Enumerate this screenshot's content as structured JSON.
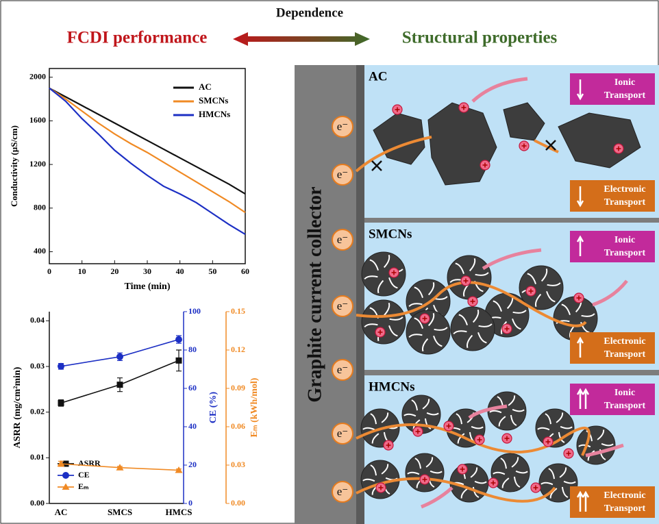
{
  "header": {
    "center": "Dependence",
    "left": "FCDI performance",
    "right": "Structural properties"
  },
  "chart_data": [
    {
      "type": "line",
      "xlabel": "Time (min)",
      "ylabel": "Conductivity (μS/cm)",
      "x": [
        0,
        5,
        10,
        15,
        20,
        25,
        30,
        35,
        40,
        45,
        50,
        55,
        60
      ],
      "series": [
        {
          "name": "AC",
          "color": "#111111",
          "values": [
            1900,
            1820,
            1740,
            1660,
            1580,
            1500,
            1420,
            1340,
            1260,
            1180,
            1100,
            1020,
            930
          ]
        },
        {
          "name": "SMCNs",
          "color": "#f08a24",
          "values": [
            1900,
            1800,
            1690,
            1580,
            1480,
            1390,
            1310,
            1220,
            1130,
            1040,
            950,
            860,
            760
          ]
        },
        {
          "name": "HMCNs",
          "color": "#1c2fc4",
          "values": [
            1900,
            1780,
            1620,
            1480,
            1330,
            1210,
            1100,
            1000,
            930,
            850,
            750,
            650,
            560
          ]
        }
      ],
      "xlim": [
        0,
        60
      ],
      "xticks": [
        0,
        10,
        20,
        30,
        40,
        50,
        60
      ],
      "ylim": [
        290,
        2080
      ],
      "yticks": [
        400,
        800,
        1200,
        1600,
        2000
      ],
      "legend": "upper right"
    },
    {
      "type": "line",
      "categories": [
        "AC",
        "SMCS",
        "HMCS"
      ],
      "ylabel": "ASRR (mg/cm²min)",
      "y2label": "CE (%)",
      "y3label": "Eₘ (kWh/mol)",
      "series": [
        {
          "name": "ASRR",
          "color": "#111111",
          "marker": "square",
          "values": [
            0.022,
            0.026,
            0.0313
          ],
          "errors": [
            0.0007,
            0.0015,
            0.0023
          ]
        },
        {
          "name": "CE",
          "color": "#1c2fc4",
          "marker": "circle",
          "axis": "y2",
          "values": [
            71.5,
            76.5,
            85.5
          ],
          "errors": [
            1.5,
            2,
            2
          ]
        },
        {
          "name": "Eₘ",
          "color": "#f08a24",
          "marker": "triangle",
          "axis": "y3",
          "values": [
            0.031,
            0.028,
            0.026
          ],
          "errors": [
            0.002,
            0.001,
            0.001
          ]
        }
      ],
      "ylim": [
        0,
        0.042
      ],
      "yticks": [
        {
          "value": 0,
          "label": "0.00"
        },
        {
          "value": 0.01,
          "label": "0.01"
        },
        {
          "value": 0.02,
          "label": "0.02"
        },
        {
          "value": 0.03,
          "label": "0.03"
        },
        {
          "value": 0.04,
          "label": "0.04"
        }
      ],
      "y2lim": [
        0,
        100
      ],
      "y2ticks": [
        0,
        20,
        40,
        60,
        80,
        100
      ],
      "y3lim": [
        0,
        0.15
      ],
      "y3ticks": [
        {
          "value": 0,
          "label": "0.00"
        },
        {
          "value": 0.03,
          "label": "0.03"
        },
        {
          "value": 0.06,
          "label": "0.06"
        },
        {
          "value": 0.09,
          "label": "0.09"
        },
        {
          "value": 0.12,
          "label": "0.12"
        },
        {
          "value": 0.15,
          "label": "0.15"
        }
      ],
      "legend": "lower left"
    }
  ],
  "diagram": {
    "collector": "Graphite current collector",
    "electrons": [
      "e⁻",
      "e⁻",
      "e⁻",
      "e⁻",
      "e⁻",
      "e⁻",
      "e⁻"
    ],
    "panels": [
      {
        "label": "AC",
        "ionic": [
          "Ionic",
          "Transport"
        ],
        "electronic": [
          "Electronic",
          "Transport"
        ]
      },
      {
        "label": "SMCNs",
        "ionic": [
          "Ionic",
          "Transport"
        ],
        "electronic": [
          "Electronic",
          "Transport"
        ]
      },
      {
        "label": "HMCNs",
        "ionic": [
          "Ionic",
          "Transport"
        ],
        "electronic": [
          "Electronic",
          "Transport"
        ]
      }
    ]
  }
}
